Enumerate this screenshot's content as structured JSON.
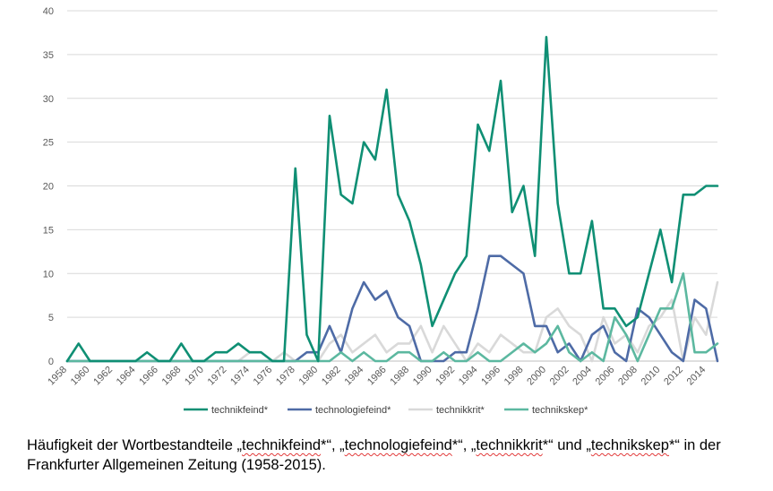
{
  "chart_data": {
    "type": "line",
    "title": "",
    "xlabel": "",
    "ylabel": "",
    "ylim": [
      0,
      40
    ],
    "yticks": [
      0,
      5,
      10,
      15,
      20,
      25,
      30,
      35,
      40
    ],
    "xlim": [
      1958,
      2015
    ],
    "xticks": [
      1958,
      1960,
      1962,
      1964,
      1966,
      1968,
      1970,
      1972,
      1974,
      1976,
      1978,
      1980,
      1982,
      1984,
      1986,
      1988,
      1990,
      1992,
      1994,
      1996,
      1998,
      2000,
      2002,
      2004,
      2006,
      2008,
      2010,
      2012,
      2014
    ],
    "grid": "horizontal",
    "legend_position": "bottom",
    "x": [
      1958,
      1959,
      1960,
      1961,
      1962,
      1963,
      1964,
      1965,
      1966,
      1967,
      1968,
      1969,
      1970,
      1971,
      1972,
      1973,
      1974,
      1975,
      1976,
      1977,
      1978,
      1979,
      1980,
      1981,
      1982,
      1983,
      1984,
      1985,
      1986,
      1987,
      1988,
      1989,
      1990,
      1991,
      1992,
      1993,
      1994,
      1995,
      1996,
      1997,
      1998,
      1999,
      2000,
      2001,
      2002,
      2003,
      2004,
      2005,
      2006,
      2007,
      2008,
      2009,
      2010,
      2011,
      2012,
      2013,
      2014,
      2015
    ],
    "series": [
      {
        "name": "technikkrit*",
        "color": "#d9d9d9",
        "values": [
          0,
          0,
          0,
          0,
          0,
          0,
          0,
          0,
          0,
          0,
          0,
          0,
          0,
          0,
          0,
          0,
          1,
          1,
          0,
          1,
          0,
          0,
          0,
          2,
          3,
          1,
          2,
          3,
          1,
          2,
          2,
          4,
          1,
          4,
          2,
          0,
          2,
          1,
          3,
          2,
          1,
          1,
          5,
          6,
          4,
          3,
          0,
          5,
          2,
          3,
          1,
          4,
          5,
          7,
          0,
          5,
          3,
          9
        ]
      },
      {
        "name": "technologiefeind*",
        "color": "#4e6ba6",
        "values": [
          0,
          0,
          0,
          0,
          0,
          0,
          0,
          0,
          0,
          0,
          0,
          0,
          0,
          0,
          0,
          0,
          0,
          0,
          0,
          0,
          0,
          1,
          1,
          4,
          1,
          6,
          9,
          7,
          8,
          5,
          4,
          0,
          0,
          0,
          1,
          1,
          6,
          12,
          12,
          11,
          10,
          4,
          4,
          1,
          2,
          0,
          3,
          4,
          1,
          0,
          6,
          5,
          3,
          1,
          0,
          7,
          6,
          0
        ]
      },
      {
        "name": "technikskep*",
        "color": "#5cb8a0",
        "values": [
          0,
          0,
          0,
          0,
          0,
          0,
          0,
          0,
          0,
          0,
          0,
          0,
          0,
          0,
          0,
          0,
          0,
          0,
          0,
          0,
          0,
          0,
          0,
          0,
          1,
          0,
          1,
          0,
          0,
          1,
          1,
          0,
          0,
          1,
          0,
          0,
          1,
          0,
          0,
          1,
          2,
          1,
          2,
          4,
          1,
          0,
          1,
          0,
          5,
          3,
          0,
          3,
          6,
          6,
          10,
          1,
          1,
          2
        ]
      },
      {
        "name": "technikfeind*",
        "color": "#0f8f74",
        "values": [
          0,
          2,
          0,
          0,
          0,
          0,
          0,
          1,
          0,
          0,
          2,
          0,
          0,
          1,
          1,
          2,
          1,
          1,
          0,
          0,
          22,
          3,
          0,
          28,
          19,
          18,
          25,
          23,
          31,
          19,
          16,
          11,
          4,
          7,
          10,
          12,
          27,
          24,
          32,
          17,
          20,
          12,
          37,
          18,
          10,
          10,
          16,
          6,
          6,
          4,
          5,
          10,
          15,
          9,
          19,
          19,
          20,
          20
        ]
      }
    ],
    "legend": [
      "technikfeind*",
      "technologiefeind*",
      "technikkrit*",
      "technikskep*"
    ]
  },
  "caption": {
    "part1": "Häufigkeit der Wortbestandteile „",
    "term1": "technikfeind",
    "part2": "*“, „",
    "term2": "technologiefeind",
    "part3": "*“, „",
    "term3": "technikkrit",
    "part4": "*“ und „",
    "term4": "technikskep",
    "part5": "*“ in der Frankfurter Allgemeinen Zeitung (1958-2015)."
  }
}
